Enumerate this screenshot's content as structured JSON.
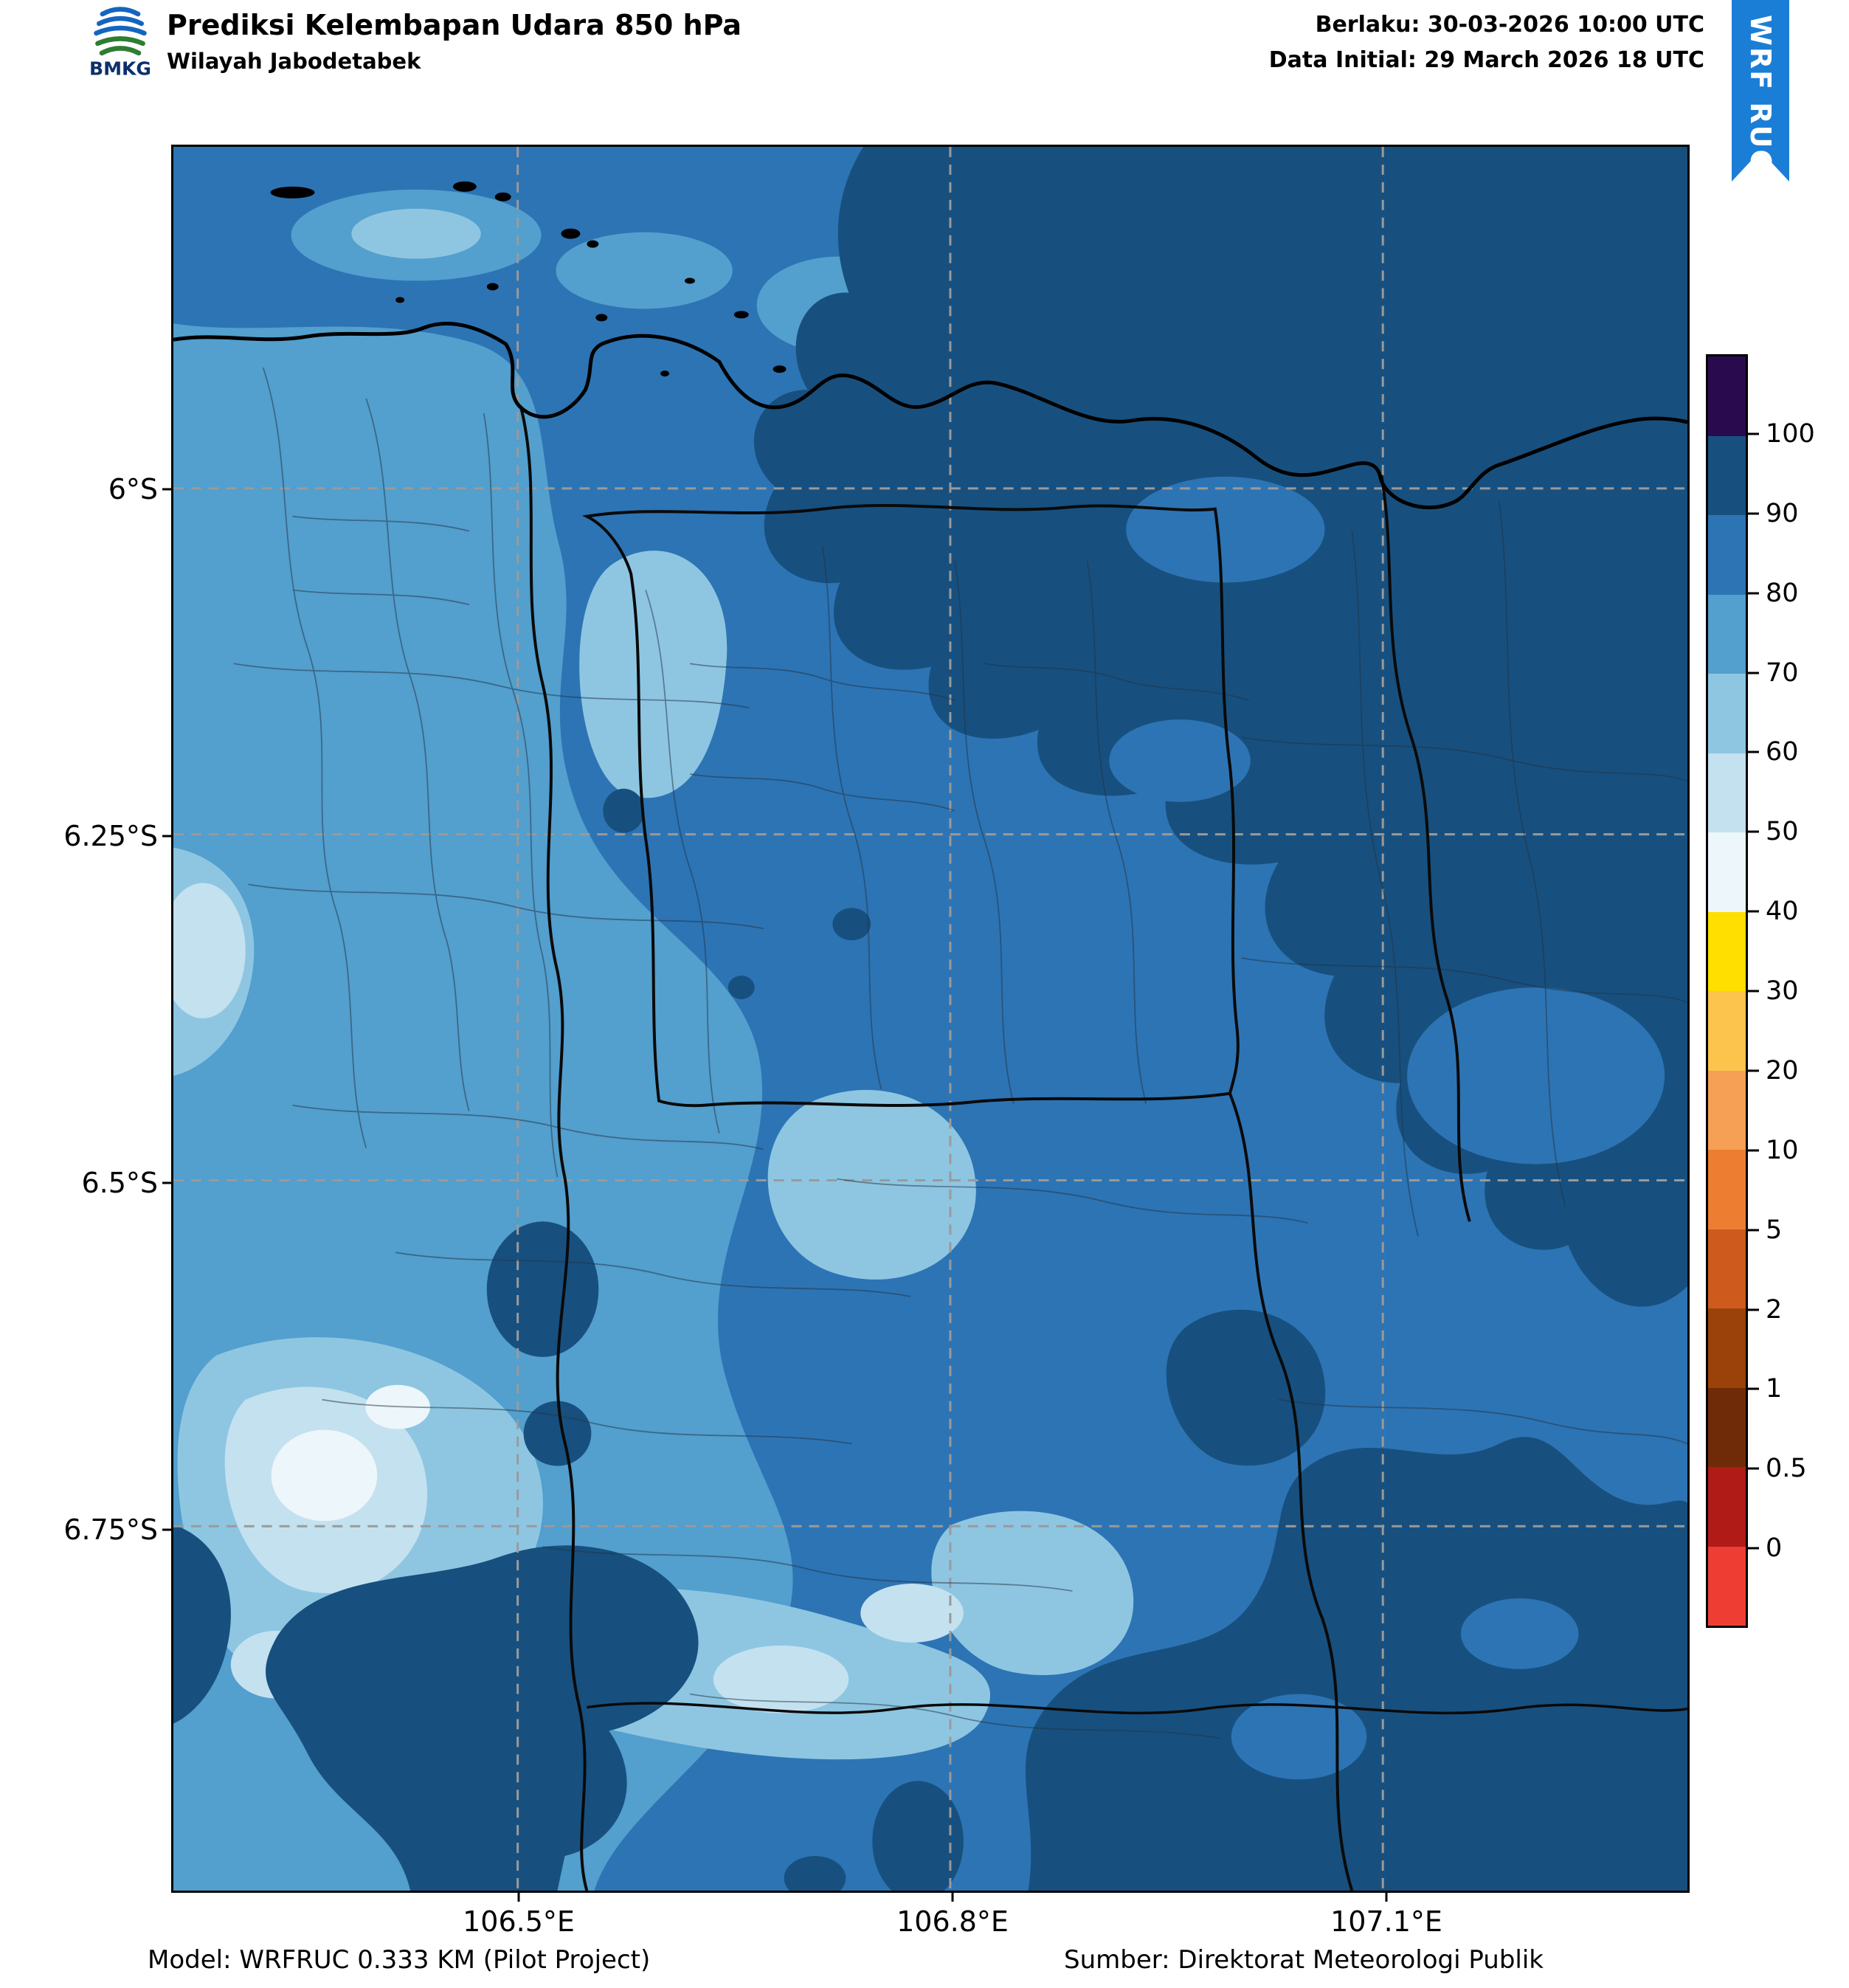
{
  "header": {
    "logo_text": "BMKG",
    "title": "Prediksi Kelembapan Udara 850 hPa",
    "subtitle": "Wilayah Jabodetabek",
    "valid_line": "Berlaku: 30-03-2026 10:00 UTC",
    "init_line": "Data Initial: 29 March 2026 18 UTC",
    "ribbon_label": "WRF RUC",
    "ribbon_color": "#1b7ed6"
  },
  "axes": {
    "lat_ticks": [
      "6°S",
      "6.25°S",
      "6.5°S",
      "6.75°S"
    ],
    "lon_ticks": [
      "106.5°E",
      "106.8°E",
      "107.1°E"
    ]
  },
  "colorbar": {
    "tick_labels": [
      "100",
      "90",
      "80",
      "70",
      "60",
      "50",
      "40",
      "30",
      "20",
      "10",
      "5",
      "2",
      "1",
      "0.5",
      "0"
    ],
    "segment_colors_top_to_bottom": [
      "#2a0a4e",
      "#17507f",
      "#2d74b4",
      "#539fce",
      "#8ec6e2",
      "#c4e1ef",
      "#edf6fb",
      "#ffdf00",
      "#fcc44d",
      "#f5a054",
      "#ed7d31",
      "#cf5a1d",
      "#9a4209",
      "#6f2b07",
      "#b01b18",
      "#ee3d33"
    ]
  },
  "footer": {
    "model": "Model: WRFRUC 0.333 KM (Pilot Project)",
    "source": "Sumber: Direktorat Meteorologi Publik"
  },
  "chart_data": {
    "type": "heatmap",
    "title": "Prediksi Kelembapan Udara 850 hPa",
    "subtitle": "Wilayah Jabodetabek",
    "variable": "relative humidity at 850 hPa",
    "units": "%",
    "valid_time": "30-03-2026 10:00 UTC",
    "initial_time": "29 March 2026 18 UTC",
    "model": "WRFRUC 0.333 KM (Pilot Project)",
    "source": "Direktorat Meteorologi Publik",
    "x_axis": {
      "label": "longitude",
      "tick_values": [
        106.5,
        106.8,
        107.1
      ],
      "tick_labels": [
        "106.5°E",
        "106.8°E",
        "107.1°E"
      ],
      "range_est": [
        106.26,
        107.31
      ]
    },
    "y_axis": {
      "label": "latitude",
      "tick_values": [
        -6.0,
        -6.25,
        -6.5,
        -6.75
      ],
      "tick_labels": [
        "6°S",
        "6.25°S",
        "6.5°S",
        "6.75°S"
      ],
      "range_est": [
        -6.88,
        -5.76
      ]
    },
    "colorbar_levels": [
      0,
      0.5,
      1,
      2,
      5,
      10,
      20,
      30,
      40,
      50,
      60,
      70,
      80,
      90,
      100
    ],
    "colorbar_position": "right",
    "graticule": "dashed gray lines at tick positions",
    "field_summary": [
      {
        "area": "most of domain including central Jakarta",
        "rh_percent": "80-90"
      },
      {
        "area": "northeast quadrant and eastern edge",
        "rh_percent": "90-100"
      },
      {
        "area": "western third (Tangerang side)",
        "rh_percent": "70-80"
      },
      {
        "area": "southwest lowland pockets",
        "rh_percent": "50-70"
      },
      {
        "area": "small southwest pockets near white",
        "rh_percent": "40-50"
      },
      {
        "area": "southern mountain blobs and bottom-right corner",
        "rh_percent": "90-100"
      }
    ]
  }
}
